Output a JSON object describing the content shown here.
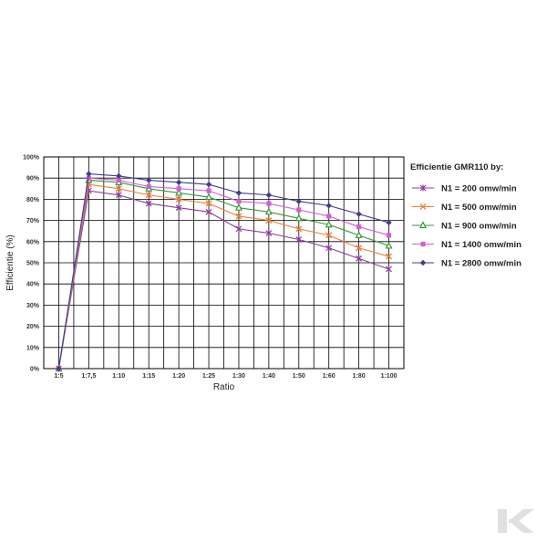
{
  "chart_data": {
    "type": "line",
    "categories": [
      "1:5",
      "1:7,5",
      "1:10",
      "1:15",
      "1:20",
      "1:25",
      "1:30",
      "1:40",
      "1:50",
      "1:60",
      "1:80",
      "1:100"
    ],
    "xlabel": "Ratio",
    "ylabel": "Efficientie (%)",
    "ylim": [
      0,
      100
    ],
    "yticks": [
      "0%",
      "10%",
      "20%",
      "30%",
      "40%",
      "50%",
      "60%",
      "70%",
      "80%",
      "90%",
      "100%"
    ],
    "grid": true,
    "legend_title": "Efficientie GMR110 by:",
    "legend_position": "right",
    "series": [
      {
        "name": "N1 = 200 omw/min",
        "color": "#8a3d99",
        "marker": "asterisk",
        "values": [
          0,
          84,
          82,
          78,
          76,
          74,
          66,
          64,
          61,
          57,
          52,
          47
        ]
      },
      {
        "name": "N1 = 500 omw/min",
        "color": "#f07f3c",
        "marker": "x",
        "values": [
          0,
          87,
          85,
          82,
          80,
          78,
          72,
          70,
          66,
          63,
          57,
          53
        ]
      },
      {
        "name": "N1 = 900 omw/min",
        "color": "#3a9a3a",
        "marker": "triangle",
        "values": [
          0,
          89,
          88,
          85,
          83,
          81,
          76,
          74,
          71,
          68,
          63,
          58
        ]
      },
      {
        "name": "N1 = 1400 omw/min",
        "color": "#d35fd3",
        "marker": "square",
        "values": [
          0,
          90,
          89,
          86,
          85,
          84,
          79,
          78,
          75,
          72,
          67,
          63
        ]
      },
      {
        "name": "N1 = 2800 omw/min",
        "color": "#3d3d8f",
        "marker": "diamond",
        "values": [
          0,
          92,
          91,
          89,
          88,
          87,
          83,
          82,
          79,
          77,
          73,
          69
        ]
      }
    ]
  },
  "logo": {
    "name": "k-logo",
    "color": "#e0e0e0"
  }
}
